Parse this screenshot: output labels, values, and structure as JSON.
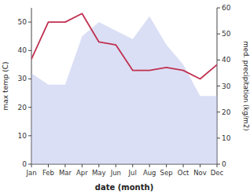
{
  "chart_data": {
    "type": "line",
    "categories": [
      "Jan",
      "Feb",
      "Mar",
      "Apr",
      "May",
      "Jun",
      "Jul",
      "Aug",
      "Sep",
      "Oct",
      "Nov",
      "Dec"
    ],
    "series": [
      {
        "type": "area",
        "color": "#b0b8e8",
        "values": [
          32,
          28,
          28,
          45,
          50,
          47,
          44,
          52,
          42,
          35,
          24,
          24
        ]
      },
      {
        "type": "line",
        "color": "#c03050",
        "values": [
          37,
          50,
          50,
          53,
          43,
          42,
          33,
          33,
          34,
          33,
          30,
          35
        ]
      }
    ],
    "xlabel": "date (month)",
    "ylabel": "max temp (C)",
    "y2label": "med. precipitation (kg/m2)",
    "ylim": [
      0,
      55
    ],
    "yticks": [
      0,
      10,
      20,
      30,
      40,
      50
    ],
    "y2lim": [
      0,
      60
    ],
    "y2ticks": [
      0,
      10,
      20,
      30,
      40,
      50,
      60
    ]
  }
}
